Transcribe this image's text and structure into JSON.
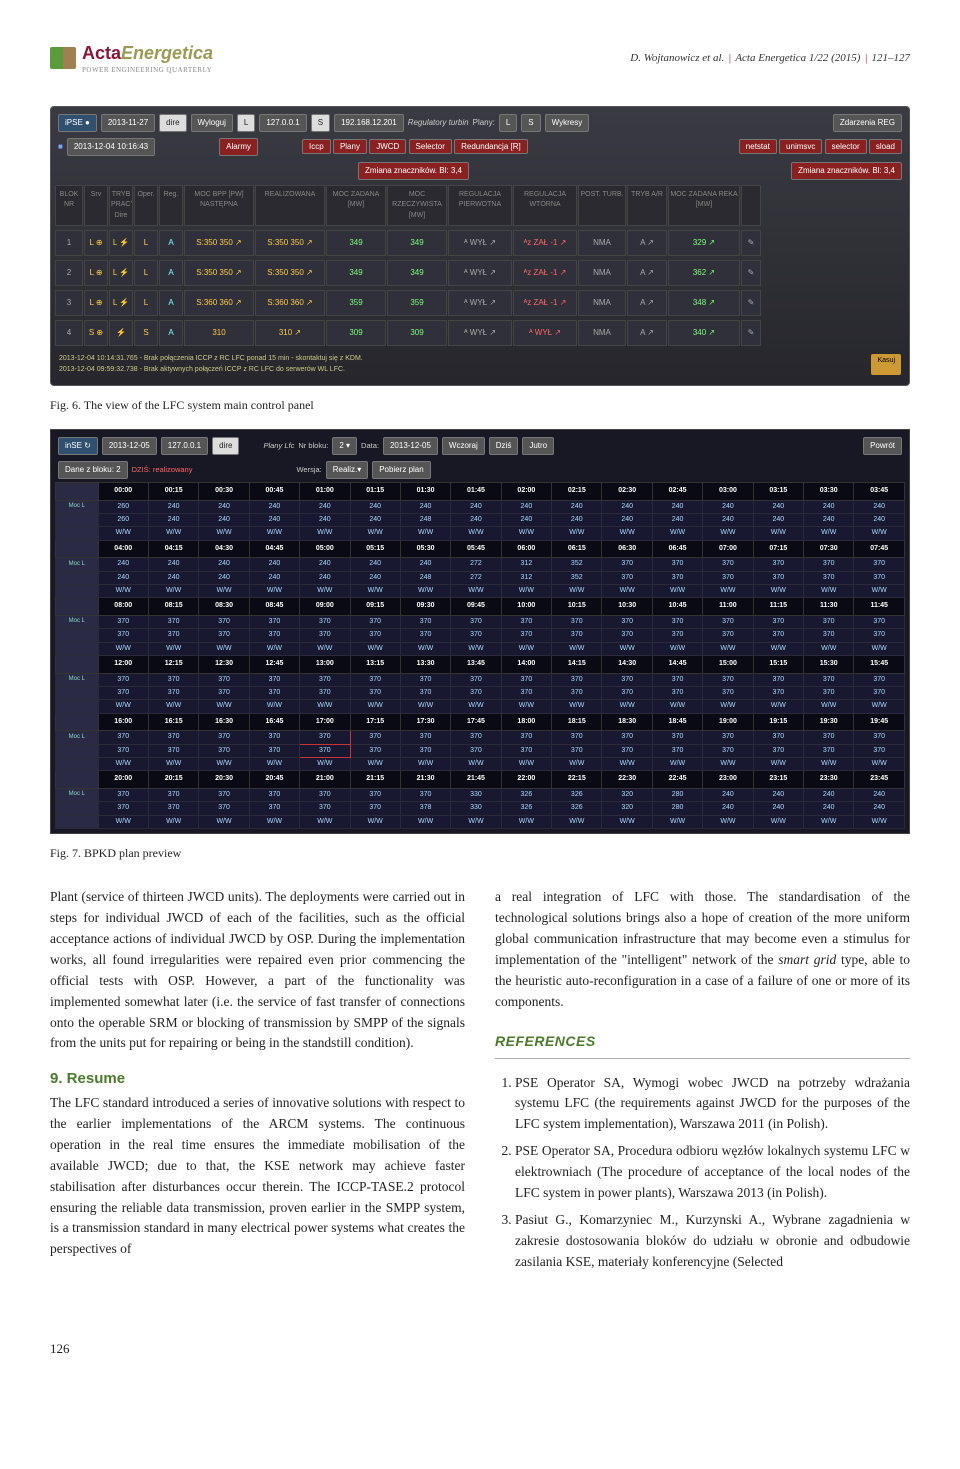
{
  "header": {
    "logo_acta": "Acta",
    "logo_energ": "Energetica",
    "logo_sub": "POWER ENGINEERING QUARTERLY",
    "cite_author": "D. Wojtanowicz et al.",
    "cite_journal": "Acta Energetica 1/22 (2015)",
    "cite_pages": "121–127"
  },
  "fig6": {
    "caption": "Fig. 6. The view of the LFC system main control panel",
    "top": {
      "ipse": "iPSE ●",
      "date1": "2013-11-27",
      "dire": "dire",
      "wyloguj": "Wyloguj",
      "L": "L",
      "ip1": "127.0.0.1",
      "S": "S",
      "ip2": "192.168.12.201",
      "regturbin": "Regulatory turbin",
      "plany": "Plany:",
      "btnL": "L",
      "btnS": "S",
      "wykresy": "Wykresy",
      "zdarzenia": "Zdarzenia REG"
    },
    "row2": {
      "ts": "2013-12-04 10:16:43",
      "alarm": "Alarmy",
      "tags": [
        "Iccp",
        "Plany",
        "JWCD",
        "Selector",
        "Redundancja [R]"
      ],
      "right": [
        "netstat",
        "unimsvc",
        "selector",
        "sload"
      ],
      "zm1": "Zmiana znaczników. Bl: 3,4",
      "zm2": "Zmiana znaczników. Bl: 3,4"
    },
    "head": [
      "BLOK NR",
      "Srv",
      "TRYB PRACY Dire",
      "Oper.",
      "Reg.",
      "MOC BPP [PW] NASTĘPNA",
      "REALIZOWANA",
      "MOC ZADANA [MW]",
      "MOC RZECZYWISTA [MW]",
      "REGULACJA PIERWOTNA",
      "REGULACJA WTÓRNA",
      "POST. TURB.",
      "TRYB A/R",
      "MOC ZADANA REKA [MW]",
      ""
    ],
    "rows": [
      {
        "n": "1",
        "srv": "L ⊕",
        "dire": "L ⚡",
        "oper": "L",
        "reg": "A",
        "nast": "S:350 350 ↗",
        "real": "S:350 350 ↗",
        "zad": "349",
        "rzecz": "349",
        "rp": "ᴬ WYŁ ↗",
        "rw": "ᴬz ZAŁ -1 ↗",
        "post": "NMA",
        "ar": "A ↗",
        "reka": "329 ↗",
        "e": "✎"
      },
      {
        "n": "2",
        "srv": "L ⊕",
        "dire": "L ⚡",
        "oper": "L",
        "reg": "A",
        "nast": "S:350 350 ↗",
        "real": "S:350 350 ↗",
        "zad": "349",
        "rzecz": "349",
        "rp": "ᴬ WYŁ ↗",
        "rw": "ᴬz ZAŁ -1 ↗",
        "post": "NMA",
        "ar": "A ↗",
        "reka": "362 ↗",
        "e": "✎"
      },
      {
        "n": "3",
        "srv": "L ⊕",
        "dire": "L ⚡",
        "oper": "L",
        "reg": "A",
        "nast": "S:360 360 ↗",
        "real": "S:360 360 ↗",
        "zad": "359",
        "rzecz": "359",
        "rp": "ᴬ WYŁ ↗",
        "rw": "ᴬz ZAŁ -1 ↗",
        "post": "NMA",
        "ar": "A ↗",
        "reka": "348 ↗",
        "e": "✎"
      },
      {
        "n": "4",
        "srv": "S ⊕",
        "dire": "⚡",
        "oper": "S",
        "reg": "A",
        "nast": "310",
        "real": "310 ↗",
        "zad": "309",
        "rzecz": "309",
        "rp": "ᴬ WYŁ ↗",
        "rw": "ᴬ WYŁ ↗",
        "post": "NMA",
        "ar": "A ↗",
        "reka": "340 ↗",
        "e": "✎"
      }
    ],
    "footer": {
      "l1": "2013-12-04 10:14:31.765  - Brak połączenia ICCP z RC LFC ponad 15 min - skontaktuj się z KDM.",
      "l2": "2013-12-04 09:59:32.738  - Brak aktywnych połączeń ICCP z RC LFC do serwerów WL LFC.",
      "btn": "Kasuj"
    }
  },
  "fig7": {
    "caption": "Fig. 7. BPKD plan preview",
    "top": {
      "inse": "inSE ↻",
      "date": "2013-12-05",
      "ip": "127.0.0.1",
      "dire": "dire",
      "plany": "Plany Lfc",
      "nrblok": "Nr bloku:",
      "nrblokv": "2 ▾",
      "data": "Data:",
      "datav": "2013-12-05",
      "wczoraj": "Wczoraj",
      "dzis": "Dziś",
      "jutro": "Jutro",
      "powrot": "Powrót",
      "dane": "Dane z bloku: 2",
      "status": "DZIŚ: realizowany",
      "wersja": "Wersja:",
      "wersjav": "Realiz.▾",
      "pobierz": "Pobierz plan"
    },
    "time_blocks": [
      {
        "times": [
          "00:00",
          "00:15",
          "00:30",
          "00:45",
          "01:00",
          "01:15",
          "01:30",
          "01:45",
          "02:00",
          "02:15",
          "02:30",
          "02:45",
          "03:00",
          "03:15",
          "03:30",
          "03:45"
        ],
        "r1": [
          "260",
          "240",
          "240",
          "240",
          "240",
          "240",
          "240",
          "240",
          "240",
          "240",
          "240",
          "240",
          "240",
          "240",
          "240",
          "240"
        ],
        "r2": [
          "260",
          "240",
          "240",
          "240",
          "240",
          "240",
          "248",
          "240",
          "240",
          "240",
          "240",
          "240",
          "240",
          "240",
          "240",
          "240"
        ],
        "r3": [
          "W/W",
          "W/W",
          "W/W",
          "W/W",
          "W/W",
          "W/W",
          "W/W",
          "W/W",
          "W/W",
          "W/W",
          "W/W",
          "W/W",
          "W/W",
          "W/W",
          "W/W",
          "W/W"
        ]
      },
      {
        "times": [
          "04:00",
          "04:15",
          "04:30",
          "04:45",
          "05:00",
          "05:15",
          "05:30",
          "05:45",
          "06:00",
          "06:15",
          "06:30",
          "06:45",
          "07:00",
          "07:15",
          "07:30",
          "07:45"
        ],
        "r1": [
          "240",
          "240",
          "240",
          "240",
          "240",
          "240",
          "240",
          "272",
          "312",
          "352",
          "370",
          "370",
          "370",
          "370",
          "370",
          "370"
        ],
        "r2": [
          "240",
          "240",
          "240",
          "240",
          "240",
          "240",
          "248",
          "272",
          "312",
          "352",
          "370",
          "370",
          "370",
          "370",
          "370",
          "370"
        ],
        "r3": [
          "W/W",
          "W/W",
          "W/W",
          "W/W",
          "W/W",
          "W/W",
          "W/W",
          "W/W",
          "W/W",
          "W/W",
          "W/W",
          "W/W",
          "W/W",
          "W/W",
          "W/W",
          "W/W"
        ]
      },
      {
        "times": [
          "08:00",
          "08:15",
          "08:30",
          "08:45",
          "09:00",
          "09:15",
          "09:30",
          "09:45",
          "10:00",
          "10:15",
          "10:30",
          "10:45",
          "11:00",
          "11:15",
          "11:30",
          "11:45"
        ],
        "r1": [
          "370",
          "370",
          "370",
          "370",
          "370",
          "370",
          "370",
          "370",
          "370",
          "370",
          "370",
          "370",
          "370",
          "370",
          "370",
          "370"
        ],
        "r2": [
          "370",
          "370",
          "370",
          "370",
          "370",
          "370",
          "370",
          "370",
          "370",
          "370",
          "370",
          "370",
          "370",
          "370",
          "370",
          "370"
        ],
        "r3": [
          "W/W",
          "W/W",
          "W/W",
          "W/W",
          "W/W",
          "W/W",
          "W/W",
          "W/W",
          "W/W",
          "W/W",
          "W/W",
          "W/W",
          "W/W",
          "W/W",
          "W/W",
          "W/W"
        ]
      },
      {
        "times": [
          "12:00",
          "12:15",
          "12:30",
          "12:45",
          "13:00",
          "13:15",
          "13:30",
          "13:45",
          "14:00",
          "14:15",
          "14:30",
          "14:45",
          "15:00",
          "15:15",
          "15:30",
          "15:45"
        ],
        "r1": [
          "370",
          "370",
          "370",
          "370",
          "370",
          "370",
          "370",
          "370",
          "370",
          "370",
          "370",
          "370",
          "370",
          "370",
          "370",
          "370"
        ],
        "r2": [
          "370",
          "370",
          "370",
          "370",
          "370",
          "370",
          "370",
          "370",
          "370",
          "370",
          "370",
          "370",
          "370",
          "370",
          "370",
          "370"
        ],
        "r3": [
          "W/W",
          "W/W",
          "W/W",
          "W/W",
          "W/W",
          "W/W",
          "W/W",
          "W/W",
          "W/W",
          "W/W",
          "W/W",
          "W/W",
          "W/W",
          "W/W",
          "W/W",
          "W/W"
        ]
      },
      {
        "times": [
          "16:00",
          "16:15",
          "16:30",
          "16:45",
          "17:00",
          "17:15",
          "17:30",
          "17:45",
          "18:00",
          "18:15",
          "18:30",
          "18:45",
          "19:00",
          "19:15",
          "19:30",
          "19:45"
        ],
        "r1": [
          "370",
          "370",
          "370",
          "370",
          "370",
          "370",
          "370",
          "370",
          "370",
          "370",
          "370",
          "370",
          "370",
          "370",
          "370",
          "370"
        ],
        "r2": [
          "370",
          "370",
          "370",
          "370",
          "370",
          "370",
          "370",
          "370",
          "370",
          "370",
          "370",
          "370",
          "370",
          "370",
          "370",
          "370"
        ],
        "r3": [
          "W/W",
          "W/W",
          "W/W",
          "W/W",
          "W/W",
          "W/W",
          "W/W",
          "W/W",
          "W/W",
          "W/W",
          "W/W",
          "W/W",
          "W/W",
          "W/W",
          "W/W",
          "W/W"
        ],
        "sel": 4
      },
      {
        "times": [
          "20:00",
          "20:15",
          "20:30",
          "20:45",
          "21:00",
          "21:15",
          "21:30",
          "21:45",
          "22:00",
          "22:15",
          "22:30",
          "22:45",
          "23:00",
          "23:15",
          "23:30",
          "23:45"
        ],
        "r1": [
          "370",
          "370",
          "370",
          "370",
          "370",
          "370",
          "370",
          "330",
          "326",
          "326",
          "320",
          "280",
          "240",
          "240",
          "240",
          "240"
        ],
        "r2": [
          "370",
          "370",
          "370",
          "370",
          "370",
          "370",
          "378",
          "330",
          "326",
          "326",
          "320",
          "280",
          "240",
          "240",
          "240",
          "240"
        ],
        "r3": [
          "W/W",
          "W/W",
          "W/W",
          "W/W",
          "W/W",
          "W/W",
          "W/W",
          "W/W",
          "W/W",
          "W/W",
          "W/W",
          "W/W",
          "W/W",
          "W/W",
          "W/W",
          "W/W"
        ]
      }
    ]
  },
  "body": {
    "p1": "Plant (service of thirteen JWCD units). The deployments were carried out in steps for individual JWCD of each of the facilities, such as the official acceptance actions of individual JWCD by OSP. During the implementation works, all found irregularities were repaired even prior commencing the official tests with OSP. However, a part of the functionality was implemented somewhat later (i.e. the service of fast transfer of connections onto the operable SRM or blocking of transmission by SMPP of the signals from the units put for repairing or being in the standstill condition).",
    "sect9_head": "9. Resume",
    "p2": "The LFC standard introduced a series of innovative solutions with respect to the earlier implementations of the ARCM systems. The continuous operation in the real time ensures the immediate mobilisation of the available JWCD; due to that, the KSE network may achieve faster stabilisation after disturbances occur therein. The ICCP-TASE.2 protocol ensuring the reliable data transmission, proven earlier in the SMPP system, is a transmission standard in many electrical power systems what creates the perspectives of",
    "p3a": "a real integration of LFC with those. The standardisation of the technological solutions brings also a hope of creation of the more uniform global communication infrastructure that may become even a stimulus for implementation of the \"intelligent\" network of the ",
    "p3b": "smart grid",
    "p3c": " type, able to the heuristic auto-reconfiguration in a case of a failure of one or more of its components.",
    "refs_head": "REFERENCES",
    "refs": [
      "PSE Operator SA, Wymogi wobec JWCD na potrzeby wdrażania systemu LFC (the requirements against JWCD for the purposes of the LFC system implementation), Warszawa 2011 (in Polish).",
      "PSE Operator SA, Procedura odbioru węzłów lokalnych systemu LFC w elektrowniach (The procedure of acceptance of the local nodes of the LFC system in power plants), Warszawa 2013 (in Polish).",
      "Pasiut G., Komarzyniec M., Kurzynski A., Wybrane zagadnienia w zakresie dostosowania bloków do udziału w obronie and odbudowie zasilania KSE, materiały konferencyjne (Selected"
    ]
  },
  "pagenum": "126"
}
